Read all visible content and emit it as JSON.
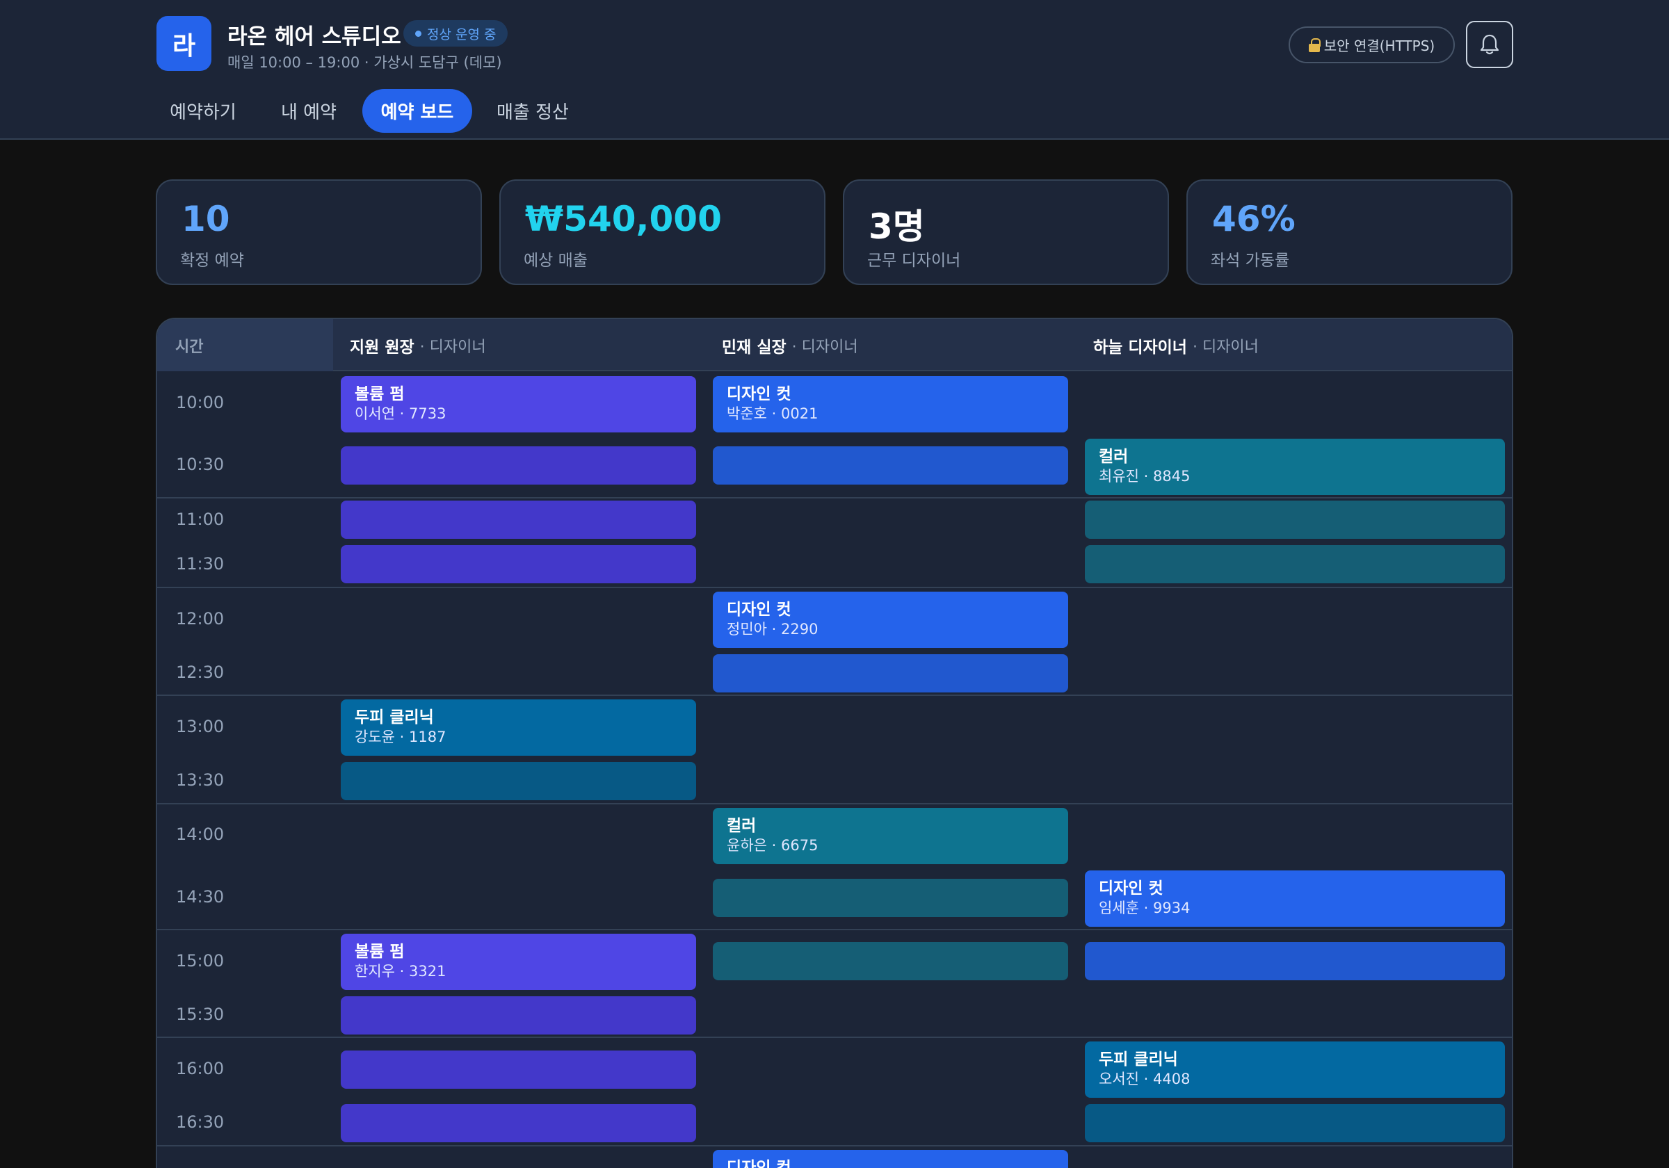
{
  "header": {
    "logo_letter": "라",
    "shop_name": "라온 헤어 스튜디오",
    "status_badge": "정상 운영 중",
    "meta": "매일 10:00 – 19:00 · 가상시 도담구 (데모)",
    "secure_label": "보안 연결(HTTPS)",
    "bell_icon": "bell-icon"
  },
  "tabs": [
    {
      "label": "예약하기",
      "active": false
    },
    {
      "label": "내 예약",
      "active": false
    },
    {
      "label": "예약 보드",
      "active": true
    },
    {
      "label": "매출 정산",
      "active": false
    }
  ],
  "stats": [
    {
      "value": "10",
      "label": "확정 예약",
      "color": "#60a5fa"
    },
    {
      "value": "₩540,000",
      "label": "예상 매출",
      "color": "#22d3ee"
    },
    {
      "value": "3명",
      "label": "근무 디자이너",
      "color": "#ffffff"
    },
    {
      "value": "46%",
      "label": "좌석 가동률",
      "color": "#60a5fa"
    }
  ],
  "board": {
    "time_header": "시간",
    "designers": [
      {
        "name": "지원 원장",
        "role": "· 디자이너"
      },
      {
        "name": "민재 실장",
        "role": "· 디자이너"
      },
      {
        "name": "하늘 디자이너",
        "role": "· 디자이너"
      }
    ],
    "times": [
      "10:00",
      "10:30",
      "11:00",
      "11:30",
      "12:00",
      "12:30",
      "13:00",
      "13:30",
      "14:00",
      "14:30",
      "15:00",
      "15:30",
      "16:00",
      "16:30"
    ],
    "appointments": [
      {
        "service": "볼륨 펌",
        "customer": "이서연 · 7733"
      },
      {
        "service": "디자인 컷",
        "customer": "박준호 · 0021"
      },
      {
        "service": "컬러",
        "customer": "최유진 · 8845"
      },
      {
        "service": "디자인 컷",
        "customer": "정민아 · 2290"
      },
      {
        "service": "두피 클리닉",
        "customer": "강도윤 · 1187"
      },
      {
        "service": "컬러",
        "customer": "윤하은 · 6675"
      },
      {
        "service": "디자인 컷",
        "customer": "임세훈 · 9934"
      },
      {
        "service": "볼륨 펌",
        "customer": "한지우 · 3321"
      },
      {
        "service": "두피 클리닉",
        "customer": "오서진 · 4408"
      },
      {
        "service": "디자인 컷",
        "customer": ""
      }
    ]
  }
}
